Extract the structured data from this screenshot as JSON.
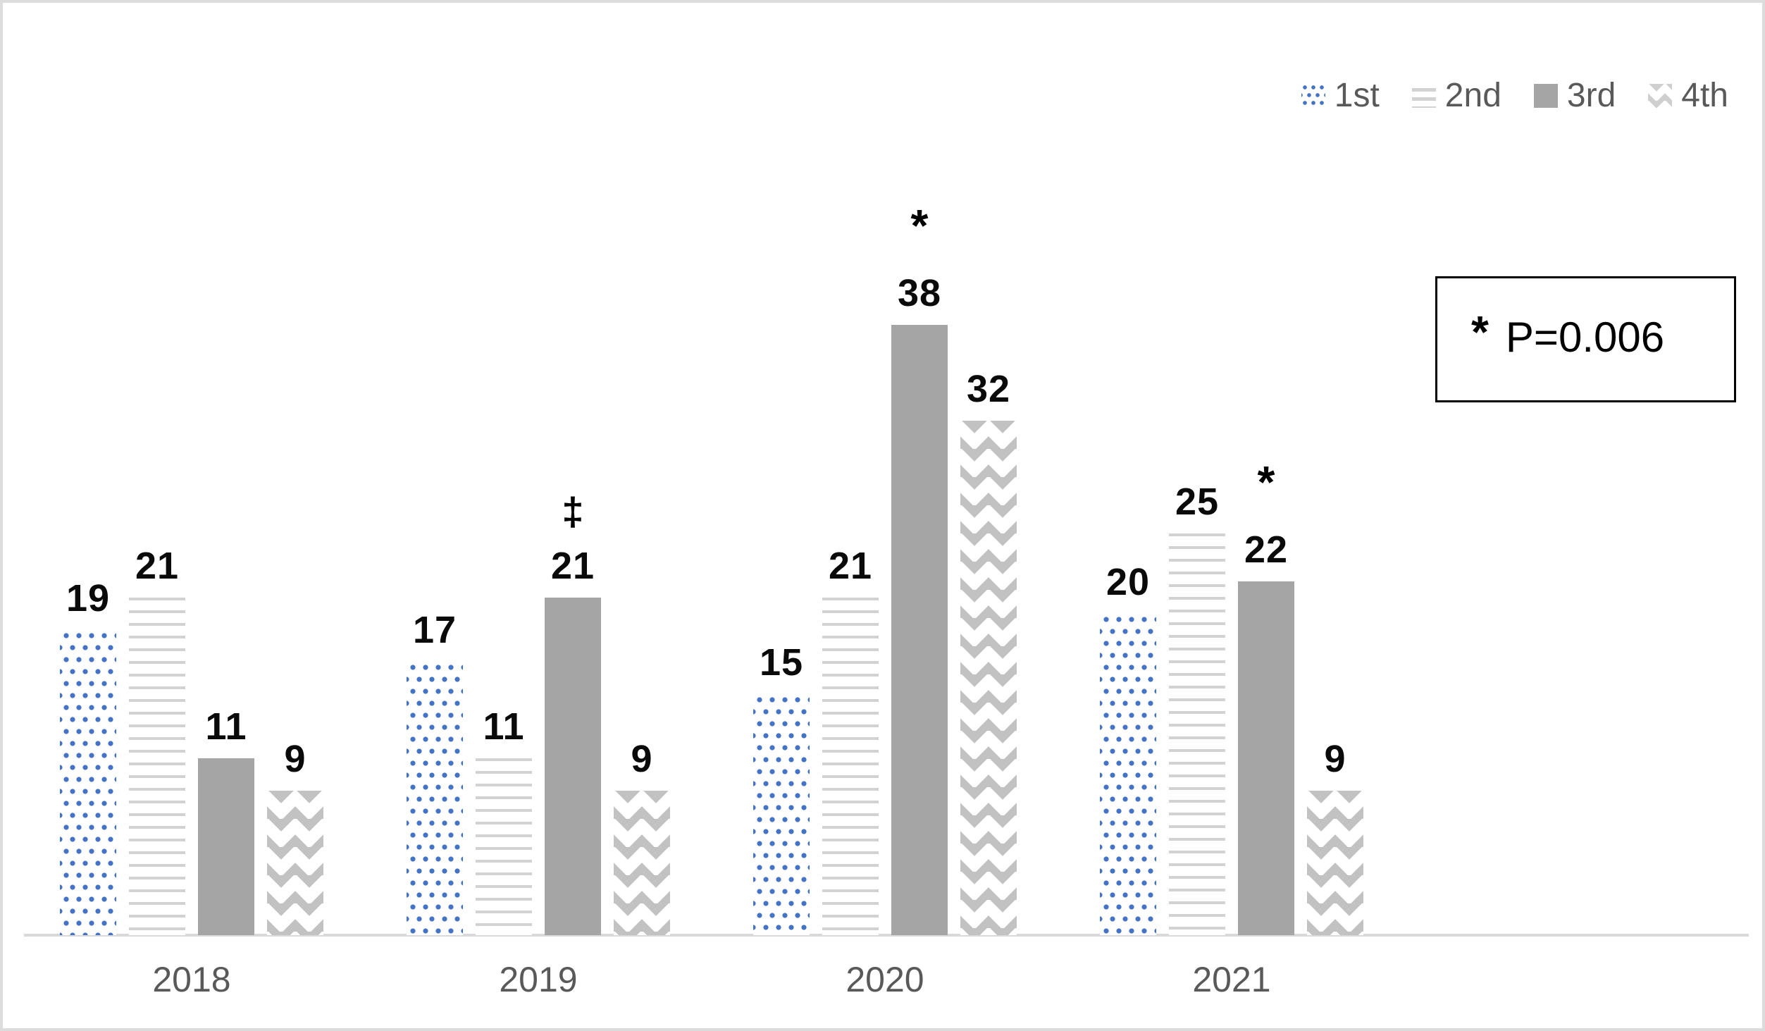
{
  "legend": {
    "items": [
      {
        "label": "1st",
        "pattern": "blue-dots"
      },
      {
        "label": "2nd",
        "pattern": "horizontal-lines"
      },
      {
        "label": "3rd",
        "pattern": "solid-gray"
      },
      {
        "label": "4th",
        "pattern": "gray-diamonds"
      }
    ]
  },
  "annotation_box": {
    "symbol": "*",
    "text": "P=0.006"
  },
  "chart_data": {
    "type": "bar",
    "categories": [
      "2018",
      "2019",
      "2020",
      "2021"
    ],
    "series": [
      {
        "name": "1st",
        "pattern": "blue-dots",
        "values": [
          19,
          17,
          15,
          20
        ]
      },
      {
        "name": "2nd",
        "pattern": "horizontal-lines",
        "values": [
          21,
          11,
          21,
          25
        ]
      },
      {
        "name": "3rd",
        "pattern": "solid-gray",
        "values": [
          11,
          21,
          38,
          22
        ]
      },
      {
        "name": "4th",
        "pattern": "gray-diamonds",
        "values": [
          9,
          9,
          32,
          9
        ]
      }
    ],
    "markers": [
      {
        "category": "2019",
        "series": "3rd",
        "symbol": "‡"
      },
      {
        "category": "2020",
        "series": "3rd",
        "symbol": "*"
      },
      {
        "category": "2021",
        "series": "3rd",
        "symbol": "*"
      }
    ],
    "title": "",
    "xlabel": "",
    "ylabel": "",
    "ylim": [
      0,
      42
    ],
    "grid": false,
    "legend_position": "top-right",
    "colors": {
      "series_1st_dot": "#4472C4",
      "series_2nd_line": "#D2D2D2",
      "series_3rd_fill": "#A5A5A5",
      "series_4th_diamond": "#C2C2C2",
      "axis_line": "#D9D9D9",
      "category_text": "#595959",
      "legend_text": "#595959",
      "value_text": "#000000"
    }
  }
}
